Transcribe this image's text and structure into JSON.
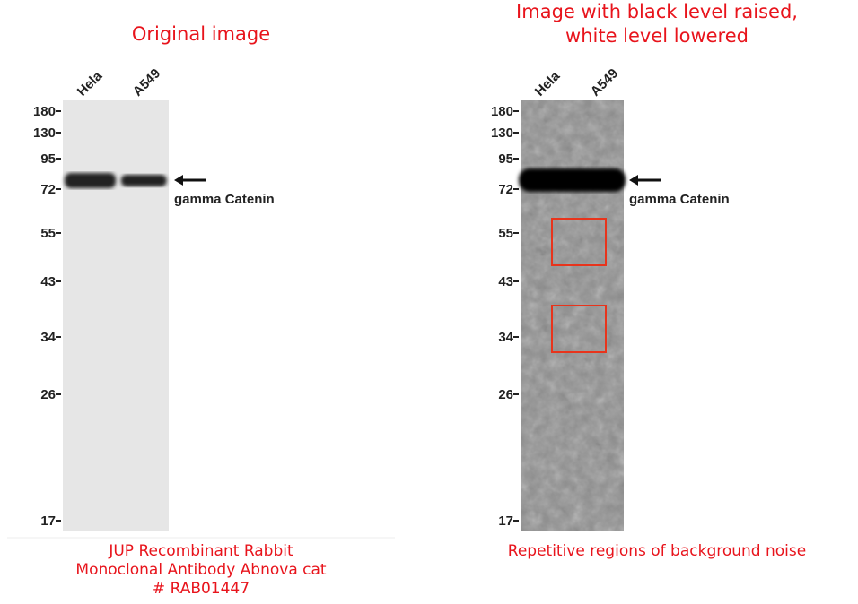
{
  "panels": [
    {
      "title": [
        "Original image"
      ],
      "lanes": [
        "Hela",
        "A549"
      ],
      "markers": [
        180,
        130,
        95,
        72,
        55,
        43,
        34,
        26,
        17
      ],
      "band_label": "gamma Catenin",
      "caption": [
        "JUP Recombinant Rabbit",
        "Monoclonal Antibody Abnova cat",
        "# RAB01447"
      ]
    },
    {
      "title": [
        "Image with black level raised,",
        "white level lowered"
      ],
      "lanes": [
        "Hela",
        "A549"
      ],
      "markers": [
        180,
        130,
        95,
        72,
        55,
        43,
        34,
        26,
        17
      ],
      "band_label": "gamma Catenin",
      "caption": [
        "Repetitive regions of background noise"
      ]
    }
  ]
}
